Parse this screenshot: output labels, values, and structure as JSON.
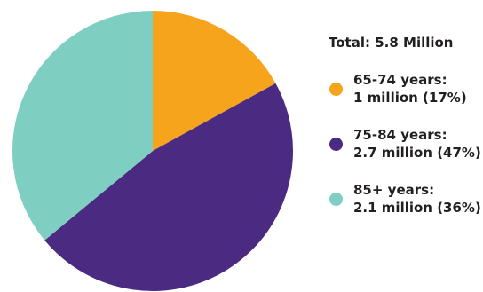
{
  "chart_data": {
    "type": "pie",
    "total": {
      "label": "Total:",
      "value": "5.8 Million"
    },
    "slices": [
      {
        "label": "65-74 years:",
        "value_text": "1 million (17%)",
        "value": 1.0,
        "percent": 17,
        "color": "#f5a41c"
      },
      {
        "label": "75-84 years:",
        "value_text": "2.7 million (47%)",
        "value": 2.7,
        "percent": 47,
        "color": "#4b2a82"
      },
      {
        "label": "85+ years:",
        "value_text": "2.1 million (36%)",
        "value": 2.1,
        "percent": 36,
        "color": "#7ecfc2"
      }
    ],
    "start_angle_deg": 0,
    "direction": "clockwise"
  }
}
